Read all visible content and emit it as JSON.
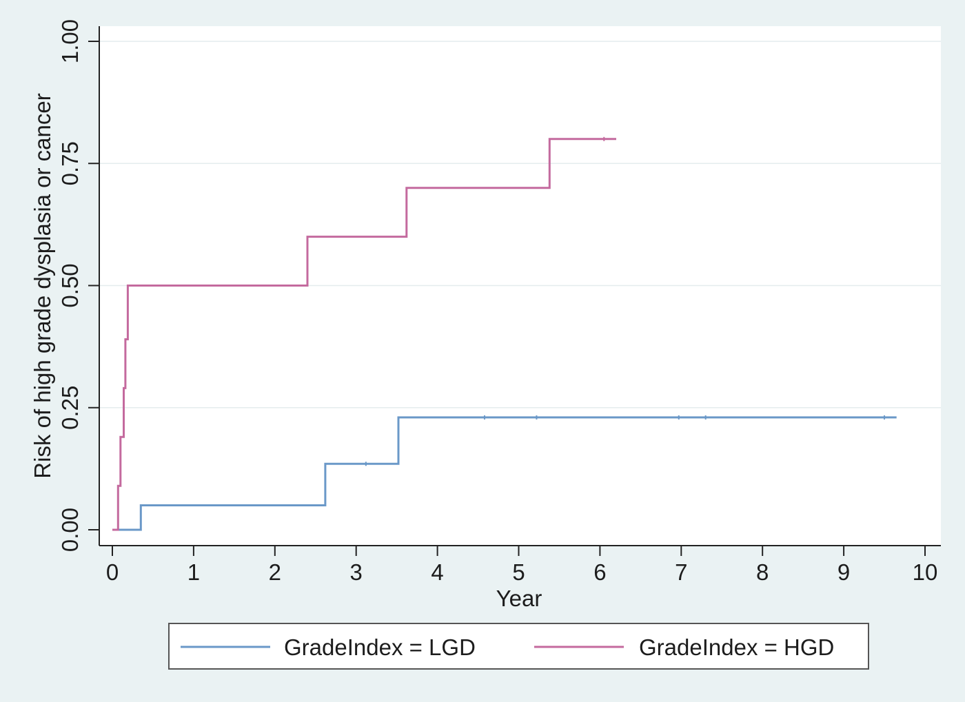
{
  "chart_data": {
    "type": "line",
    "step": true,
    "xlabel": "Year",
    "ylabel": "Risk of high grade dysplasia or cancer",
    "xlim": [
      0,
      10
    ],
    "ylim": [
      0,
      1
    ],
    "x_ticks": [
      0,
      1,
      2,
      3,
      4,
      5,
      6,
      7,
      8,
      9,
      10
    ],
    "x_tick_labels": [
      "0",
      "1",
      "2",
      "3",
      "4",
      "5",
      "6",
      "7",
      "8",
      "9",
      "10"
    ],
    "y_ticks": [
      0,
      0.25,
      0.5,
      0.75,
      1
    ],
    "y_tick_labels": [
      "0.00",
      "0.25",
      "0.50",
      "0.75",
      "1.00"
    ],
    "grid": "horizontal",
    "legend_position": "bottom",
    "series": [
      {
        "name": "GradeIndex = LGD",
        "color": "#6a98c8",
        "points": [
          [
            0,
            0
          ],
          [
            0.35,
            0
          ],
          [
            0.35,
            0.05
          ],
          [
            2.62,
            0.05
          ],
          [
            2.62,
            0.135
          ],
          [
            3.52,
            0.135
          ],
          [
            3.52,
            0.23
          ],
          [
            9.65,
            0.23
          ]
        ],
        "censor_x": [
          3.12,
          4.58,
          5.22,
          6.97,
          7.3,
          9.5
        ]
      },
      {
        "name": "GradeIndex = HGD",
        "color": "#c46a9e",
        "points": [
          [
            0,
            0
          ],
          [
            0.07,
            0
          ],
          [
            0.07,
            0.09
          ],
          [
            0.1,
            0.09
          ],
          [
            0.1,
            0.19
          ],
          [
            0.14,
            0.19
          ],
          [
            0.14,
            0.29
          ],
          [
            0.16,
            0.29
          ],
          [
            0.16,
            0.39
          ],
          [
            0.19,
            0.39
          ],
          [
            0.19,
            0.5
          ],
          [
            2.4,
            0.5
          ],
          [
            2.4,
            0.6
          ],
          [
            3.62,
            0.6
          ],
          [
            3.62,
            0.7
          ],
          [
            5.38,
            0.7
          ],
          [
            5.38,
            0.8
          ],
          [
            6.2,
            0.8
          ]
        ],
        "censor_x": [
          6.05
        ]
      }
    ]
  }
}
